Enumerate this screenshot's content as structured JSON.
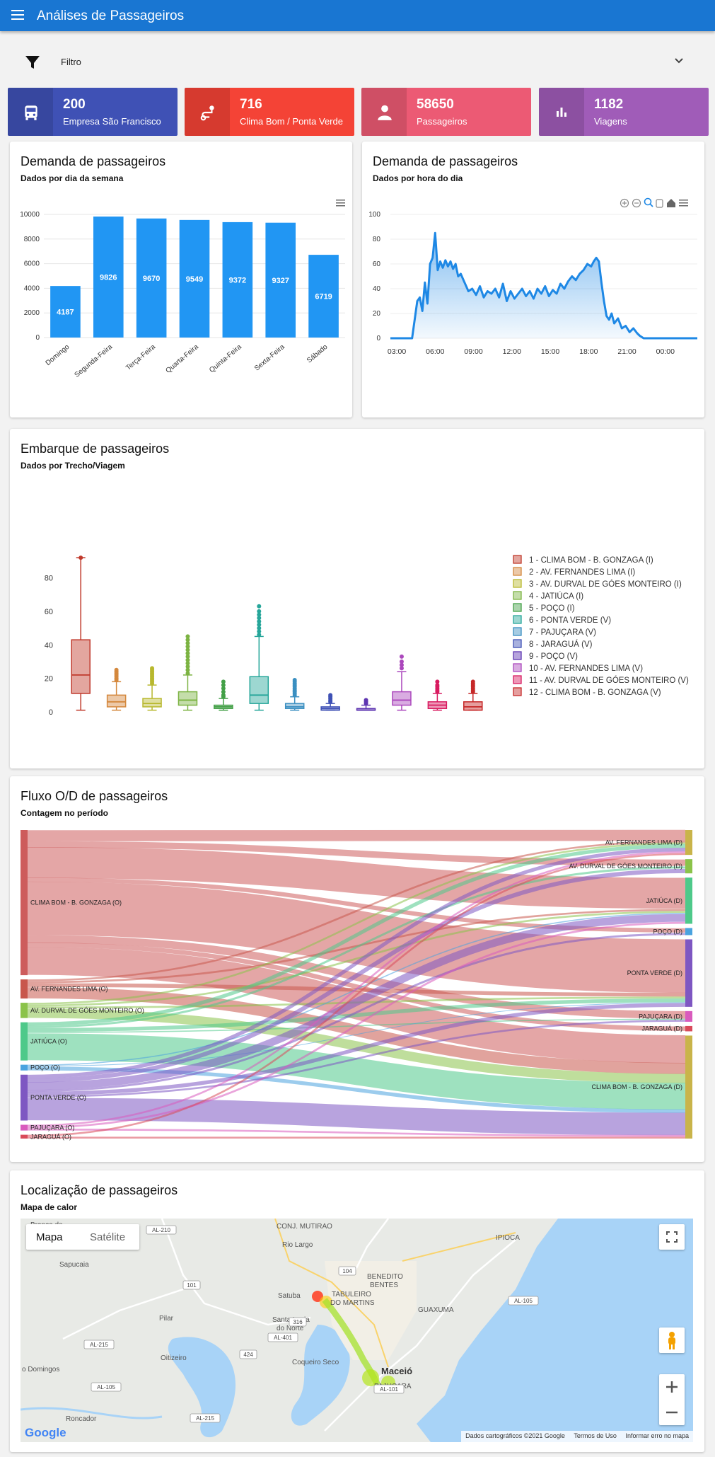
{
  "appbar": {
    "title": "Análises de Passageiros"
  },
  "filter": {
    "label": "Filtro"
  },
  "stats": [
    {
      "value": "200",
      "label": "Empresa São Francisco",
      "color": "#3f51b5",
      "icon": "bus-icon"
    },
    {
      "value": "716",
      "label": "Clima Bom / Ponta Verde",
      "color": "#f44336",
      "icon": "route-icon"
    },
    {
      "value": "58650",
      "label": "Passageiros",
      "color": "#ec5a74",
      "icon": "person-icon"
    },
    {
      "value": "1182",
      "label": "Viagens",
      "color": "#a05cb8",
      "icon": "bar-chart-icon"
    }
  ],
  "weekday": {
    "title": "Demanda de passageiros",
    "subtitle": "Dados por dia da semana",
    "chart_data": {
      "type": "bar",
      "categories": [
        "Domingo",
        "Segunda-Feira",
        "Terça-Feira",
        "Quarta-Feira",
        "Quinta-Feira",
        "Sexta-Feira",
        "Sábado"
      ],
      "values": [
        4187,
        9826,
        9670,
        9549,
        9372,
        9327,
        6719
      ],
      "yticks": [
        "0",
        "2000",
        "4000",
        "6000",
        "8000",
        "10000"
      ],
      "ylim": [
        0,
        10000
      ],
      "color": "#2196f3"
    }
  },
  "hourly": {
    "title": "Demanda de passageiros",
    "subtitle": "Dados por hora do dia",
    "chart_data": {
      "type": "area",
      "xticks": [
        "03:00",
        "06:00",
        "09:00",
        "12:00",
        "15:00",
        "18:00",
        "21:00",
        "00:00"
      ],
      "yticks": [
        "0",
        "20",
        "40",
        "60",
        "80",
        "100"
      ],
      "ylim": [
        0,
        100
      ],
      "xlim_hours": [
        2.5,
        26.5
      ],
      "x": [
        2.5,
        4.2,
        4.6,
        4.8,
        5.0,
        5.2,
        5.4,
        5.6,
        5.8,
        6.0,
        6.2,
        6.4,
        6.6,
        6.8,
        7.0,
        7.2,
        7.4,
        7.6,
        7.8,
        8.0,
        8.3,
        8.6,
        8.9,
        9.2,
        9.5,
        9.8,
        10.1,
        10.4,
        10.7,
        11.0,
        11.3,
        11.6,
        11.9,
        12.2,
        12.5,
        12.8,
        13.1,
        13.4,
        13.7,
        14.0,
        14.3,
        14.6,
        14.9,
        15.2,
        15.5,
        15.8,
        16.1,
        16.4,
        16.7,
        17.0,
        17.3,
        17.6,
        17.9,
        18.2,
        18.4,
        18.6,
        18.8,
        19.0,
        19.2,
        19.4,
        19.6,
        19.8,
        20.0,
        20.3,
        20.6,
        20.9,
        21.2,
        21.5,
        21.8,
        22.0,
        22.3,
        22.6,
        23.0,
        26.5
      ],
      "values": [
        0,
        0,
        30,
        33,
        22,
        45,
        28,
        60,
        65,
        85,
        55,
        62,
        57,
        63,
        58,
        62,
        56,
        60,
        50,
        52,
        45,
        38,
        40,
        35,
        42,
        33,
        38,
        36,
        40,
        33,
        44,
        30,
        38,
        32,
        36,
        40,
        34,
        38,
        32,
        40,
        36,
        42,
        34,
        39,
        36,
        44,
        40,
        46,
        50,
        47,
        52,
        55,
        60,
        58,
        62,
        65,
        62,
        45,
        30,
        18,
        15,
        20,
        12,
        16,
        8,
        10,
        5,
        8,
        4,
        2,
        0,
        0,
        0,
        0
      ],
      "color": "#1e88e5"
    }
  },
  "boarding": {
    "title": "Embarque de passageiros",
    "subtitle": "Dados por Trecho/Viagem",
    "chart_data": {
      "type": "box",
      "yticks": [
        "0",
        "20",
        "40",
        "60",
        "80"
      ],
      "ylim": [
        0,
        95
      ],
      "series": [
        {
          "name": "1 - CLIMA BOM - B. GONZAGA (I)",
          "color": "#c0392b",
          "min": 1,
          "q1": 11,
          "median": 22,
          "q3": 43,
          "max": 92,
          "outliers": [
            92
          ]
        },
        {
          "name": "2 - AV. FERNANDES LIMA (I)",
          "color": "#d4883d",
          "min": 1,
          "q1": 3,
          "median": 6,
          "q3": 10,
          "max": 18,
          "outliers": [
            19,
            20,
            21,
            22,
            23,
            24,
            25
          ]
        },
        {
          "name": "3 - AV. DURVAL DE GÓES MONTEIRO (I)",
          "color": "#b8b82e",
          "min": 1,
          "q1": 3,
          "median": 5,
          "q3": 8,
          "max": 16,
          "outliers": [
            17,
            18,
            19,
            20,
            21,
            22,
            23,
            24,
            25,
            26
          ]
        },
        {
          "name": "4 - JATIÚCA (I)",
          "color": "#7cb342",
          "min": 1,
          "q1": 4,
          "median": 7,
          "q3": 12,
          "max": 22,
          "outliers": [
            23,
            25,
            27,
            29,
            31,
            33,
            35,
            37,
            39,
            41,
            43,
            45
          ]
        },
        {
          "name": "5 - POÇO (I)",
          "color": "#43a047",
          "min": 1,
          "q1": 2,
          "median": 3,
          "q3": 4,
          "max": 8,
          "outliers": [
            9,
            10,
            12,
            14,
            16,
            18
          ]
        },
        {
          "name": "6 - PONTA VERDE (V)",
          "color": "#26a69a",
          "min": 1,
          "q1": 5,
          "median": 10,
          "q3": 21,
          "max": 45,
          "outliers": [
            46,
            48,
            50,
            52,
            54,
            56,
            58,
            60,
            63
          ]
        },
        {
          "name": "7 - PAJUÇARA (V)",
          "color": "#3a8fc1",
          "min": 1,
          "q1": 2,
          "median": 3,
          "q3": 5,
          "max": 9,
          "outliers": [
            10,
            11,
            12,
            13,
            14,
            15,
            16,
            17,
            18,
            19
          ]
        },
        {
          "name": "8 - JARAGUÁ (V)",
          "color": "#3f51b5",
          "min": 1,
          "q1": 1,
          "median": 2,
          "q3": 3,
          "max": 5,
          "outliers": [
            6,
            7,
            8,
            9,
            10
          ]
        },
        {
          "name": "9 - POÇO (V)",
          "color": "#5e35b1",
          "min": 1,
          "q1": 1,
          "median": 1,
          "q3": 2,
          "max": 4,
          "outliers": [
            5,
            6,
            7
          ]
        },
        {
          "name": "10 - AV. FERNANDES LIMA (V)",
          "color": "#ab47bc",
          "min": 1,
          "q1": 4,
          "median": 7,
          "q3": 12,
          "max": 24,
          "outliers": [
            26,
            28,
            30,
            33
          ]
        },
        {
          "name": "11 - AV. DURVAL DE GÓES MONTEIRO (V)",
          "color": "#d81b60",
          "min": 1,
          "q1": 2,
          "median": 4,
          "q3": 6,
          "max": 11,
          "outliers": [
            12,
            13,
            14,
            15,
            16,
            18
          ]
        },
        {
          "name": "12 - CLIMA BOM - B. GONZAGA (V)",
          "color": "#c62828",
          "min": 1,
          "q1": 1,
          "median": 3,
          "q3": 6,
          "max": 11,
          "outliers": [
            12,
            13,
            14,
            15,
            16,
            17,
            18
          ]
        }
      ]
    }
  },
  "flow": {
    "title": "Fluxo O/D de passageiros",
    "subtitle": "Contagem no período",
    "chart_data": {
      "type": "sankey",
      "origins": [
        {
          "name": "CLIMA BOM - B. GONZAGA (O)",
          "color": "#cd5c5c",
          "weight": 38
        },
        {
          "name": "AV. FERNANDES LIMA (O)",
          "color": "#c8574c",
          "weight": 5
        },
        {
          "name": "AV. DURVAL DE GÓES MONTEIRO (O)",
          "color": "#8bc34a",
          "weight": 4
        },
        {
          "name": "JATIÚCA (O)",
          "color": "#4ec98a",
          "weight": 10
        },
        {
          "name": "POÇO (O)",
          "color": "#4aa3df",
          "weight": 1.5
        },
        {
          "name": "PONTA VERDE (O)",
          "color": "#7e57c2",
          "weight": 12
        },
        {
          "name": "PAJUÇARA (O)",
          "color": "#d95bbd",
          "weight": 1.5
        },
        {
          "name": "JARAGUÁ (O)",
          "color": "#d94a5a",
          "weight": 1
        }
      ],
      "destinations": [
        {
          "name": "AV. FERNANDES LIMA (D)",
          "color": "#c9b44a",
          "weight": 7
        },
        {
          "name": "AV. DURVAL DE GÓES MONTEIRO (D)",
          "color": "#8bc34a",
          "weight": 4
        },
        {
          "name": "JATIÚCA (D)",
          "color": "#4ec98a",
          "weight": 13
        },
        {
          "name": "POÇO (D)",
          "color": "#4aa3df",
          "weight": 2
        },
        {
          "name": "PONTA VERDE (D)",
          "color": "#7e57c2",
          "weight": 19
        },
        {
          "name": "PAJUÇARA (D)",
          "color": "#d95bbd",
          "weight": 3
        },
        {
          "name": "JARAGUÁ (D)",
          "color": "#d94a5a",
          "weight": 1.5
        },
        {
          "name": "CLIMA BOM - B. GONZAGA (D)",
          "color": "#c9b44a",
          "weight": 29
        }
      ],
      "links": [
        [
          0,
          0,
          3
        ],
        [
          0,
          1,
          1.5
        ],
        [
          0,
          2,
          8
        ],
        [
          0,
          3,
          1
        ],
        [
          0,
          4,
          14
        ],
        [
          0,
          5,
          2
        ],
        [
          0,
          6,
          1
        ],
        [
          0,
          7,
          7.5
        ],
        [
          1,
          0,
          0.5
        ],
        [
          1,
          2,
          0.5
        ],
        [
          1,
          4,
          1
        ],
        [
          1,
          7,
          3
        ],
        [
          2,
          0,
          0.5
        ],
        [
          2,
          2,
          0.5
        ],
        [
          2,
          4,
          0.5
        ],
        [
          2,
          7,
          2.5
        ],
        [
          3,
          0,
          1
        ],
        [
          3,
          1,
          0.5
        ],
        [
          3,
          4,
          1
        ],
        [
          3,
          5,
          0.3
        ],
        [
          3,
          7,
          7.2
        ],
        [
          4,
          2,
          0.3
        ],
        [
          4,
          4,
          0.2
        ],
        [
          4,
          7,
          1
        ],
        [
          5,
          0,
          1
        ],
        [
          5,
          1,
          1
        ],
        [
          5,
          2,
          2
        ],
        [
          5,
          3,
          0.5
        ],
        [
          5,
          4,
          1
        ],
        [
          5,
          5,
          0.5
        ],
        [
          5,
          7,
          6
        ],
        [
          6,
          0,
          0.5
        ],
        [
          6,
          2,
          0.5
        ],
        [
          6,
          7,
          0.5
        ],
        [
          7,
          0,
          0.5
        ],
        [
          7,
          7,
          0.5
        ]
      ]
    }
  },
  "heatmap": {
    "title": "Localização de passageiros",
    "subtitle": "Mapa de calor",
    "map_tabs": [
      "Mapa",
      "Satélite"
    ],
    "footer": [
      "Dados cartográficos ©2021 Google",
      "Termos de Uso",
      "Informar erro no mapa"
    ],
    "google_logo": "Google",
    "places": [
      {
        "text": "Branca de",
        "x": 14,
        "y": 2
      },
      {
        "text": "Rio Largo",
        "x": 370,
        "y": 30
      },
      {
        "text": "CONJ. MUTIRAO",
        "x": 362,
        "y": 4
      },
      {
        "text": "IPIOCA",
        "x": 672,
        "y": 20
      },
      {
        "text": "Sapucaia",
        "x": 55,
        "y": 58
      },
      {
        "text": "BENEDITO",
        "x": 490,
        "y": 75
      },
      {
        "text": "BENTES",
        "x": 494,
        "y": 87
      },
      {
        "text": "Satuba",
        "x": 364,
        "y": 102
      },
      {
        "text": "TABULEIRO",
        "x": 440,
        "y": 100
      },
      {
        "text": "DO MARTINS",
        "x": 438,
        "y": 112
      },
      {
        "text": "GUAXUMA",
        "x": 562,
        "y": 122
      },
      {
        "text": "Pilar",
        "x": 196,
        "y": 134
      },
      {
        "text": "Santa Luzia",
        "x": 356,
        "y": 136
      },
      {
        "text": "do Norte",
        "x": 362,
        "y": 148
      },
      {
        "text": "Oitizeiro",
        "x": 198,
        "y": 190
      },
      {
        "text": "Coqueiro Seco",
        "x": 384,
        "y": 196
      },
      {
        "text": "Maceió",
        "x": 510,
        "y": 210
      },
      {
        "text": "PAJUÇARA",
        "x": 500,
        "y": 230
      },
      {
        "text": "o Domingos",
        "x": 2,
        "y": 206
      },
      {
        "text": "Roncador",
        "x": 64,
        "y": 276
      }
    ],
    "roads": [
      "AL-210",
      "AL-105",
      "104",
      "101",
      "AL-101",
      "316",
      "424",
      "AL-401",
      "AL-215",
      "AL-105",
      "AL-215"
    ]
  }
}
